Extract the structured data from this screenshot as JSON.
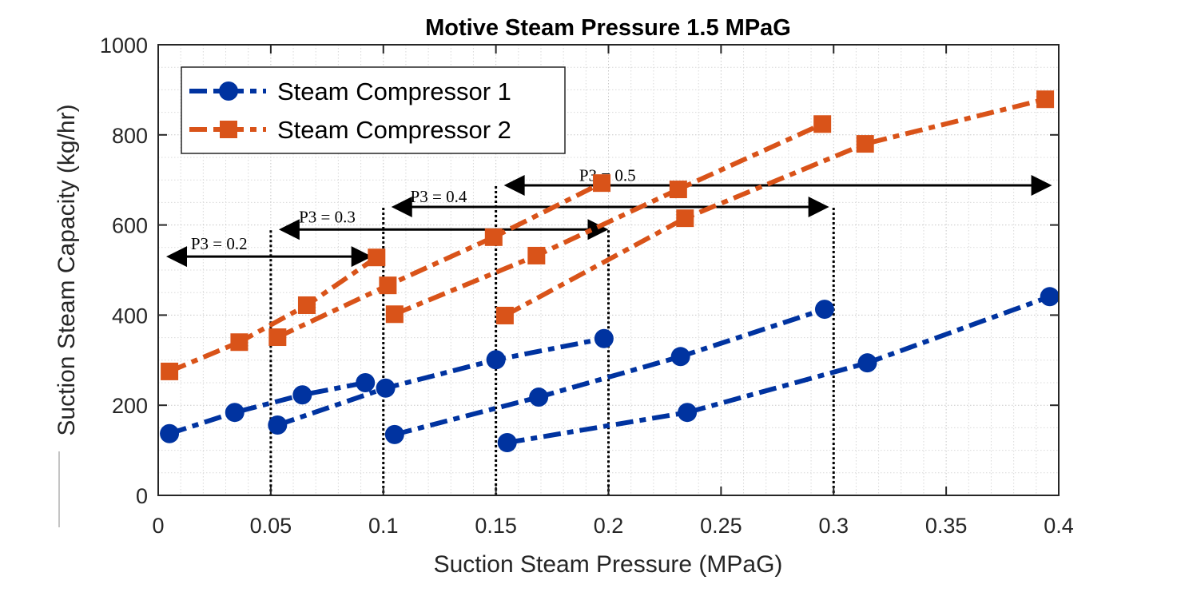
{
  "chart_data": {
    "type": "line",
    "title": "Motive Steam Pressure 1.5 MPaG",
    "xlabel": "Suction Steam Pressure (MPaG)",
    "ylabel": "Suction Steam Capacity (kg/hr)",
    "xlim": [
      0,
      0.4
    ],
    "ylim": [
      0,
      1000
    ],
    "xticks": [
      0,
      0.05,
      0.1,
      0.15,
      0.2,
      0.25,
      0.3,
      0.35,
      0.4
    ],
    "xtick_labels": [
      "0",
      "0.05",
      "0.1",
      "0.15",
      "0.2",
      "0.25",
      "0.3",
      "0.35",
      "0.4"
    ],
    "yticks": [
      0,
      200,
      400,
      600,
      800,
      1000
    ],
    "ytick_labels": [
      "0",
      "200",
      "400",
      "600",
      "800",
      "1000"
    ],
    "grid": "major and minor (dotted)",
    "legend": {
      "position": "top-left",
      "entries": [
        "Steam Compressor 1",
        "Steam Compressor 2"
      ]
    },
    "series": [
      {
        "name": "Steam Compressor 1",
        "color": "#0033A0",
        "marker": "circle",
        "style": "dash-dot",
        "curves": [
          {
            "p3": 0.2,
            "x": [
              0.005,
              0.034,
              0.064,
              0.092
            ],
            "y": [
              137,
              184,
              223,
              250
            ]
          },
          {
            "p3": 0.3,
            "x": [
              0.053,
              0.101,
              0.15,
              0.198
            ],
            "y": [
              156,
              238,
              301,
              348
            ]
          },
          {
            "p3": 0.4,
            "x": [
              0.105,
              0.169,
              0.232,
              0.296
            ],
            "y": [
              135,
              218,
              308,
              413
            ]
          },
          {
            "p3": 0.5,
            "x": [
              0.155,
              0.235,
              0.315,
              0.396
            ],
            "y": [
              117,
              184,
              294,
              441
            ]
          }
        ]
      },
      {
        "name": "Steam Compressor 2",
        "color": "#D95319",
        "marker": "square",
        "style": "dash-dot",
        "curves": [
          {
            "p3": 0.2,
            "x": [
              0.005,
              0.036,
              0.066,
              0.097
            ],
            "y": [
              275,
              340,
              422,
              528
            ]
          },
          {
            "p3": 0.3,
            "x": [
              0.053,
              0.102,
              0.149,
              0.197
            ],
            "y": [
              351,
              466,
              573,
              693
            ]
          },
          {
            "p3": 0.4,
            "x": [
              0.105,
              0.168,
              0.231,
              0.295
            ],
            "y": [
              402,
              532,
              679,
              824
            ]
          },
          {
            "p3": 0.5,
            "x": [
              0.154,
              0.234,
              0.314,
              0.394
            ],
            "y": [
              399,
              615,
              780,
              879
            ]
          }
        ]
      }
    ],
    "annotations": [
      {
        "text": "P3 = 0.2",
        "range": [
          0.0,
          0.095
        ],
        "arrow_y": 530,
        "label_x": 0.0145,
        "label_y": 560,
        "dotted_x": [
          0.05
        ],
        "dotted_top": 590
      },
      {
        "text": "P3 = 0.3",
        "range": [
          0.05,
          0.2
        ],
        "arrow_y": 590,
        "label_x": 0.0625,
        "label_y": 620,
        "dotted_x": [
          0.2
        ],
        "dotted_top": 590
      },
      {
        "text": "P3 = 0.4",
        "range": [
          0.1,
          0.298
        ],
        "arrow_y": 640,
        "label_x": 0.112,
        "label_y": 665,
        "dotted_x": [
          0.1,
          0.3
        ],
        "dotted_top": 640
      },
      {
        "text": "P3 = 0.5",
        "range": [
          0.15,
          0.397
        ],
        "arrow_y": 688,
        "label_x": 0.187,
        "label_y": 712,
        "dotted_x": [
          0.15
        ],
        "dotted_top": 688
      }
    ]
  }
}
